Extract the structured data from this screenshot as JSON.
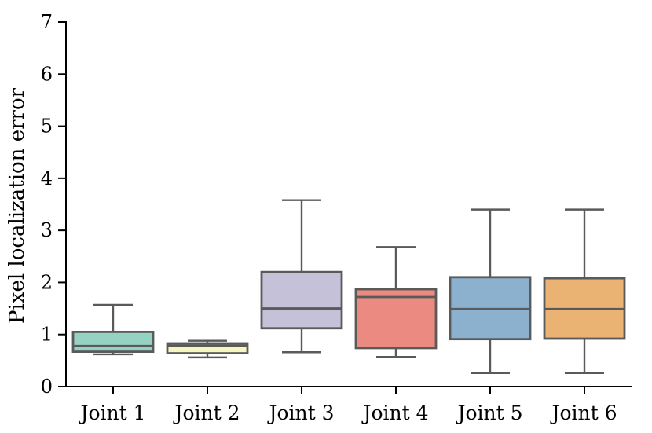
{
  "chart_data": {
    "type": "boxplot",
    "title": "",
    "xlabel": "",
    "ylabel": "Pixel localization error",
    "ylim": [
      0,
      7
    ],
    "yticks": [
      0,
      1,
      2,
      3,
      4,
      5,
      6,
      7
    ],
    "grid": false,
    "legend": "none",
    "background_color": "#ffffff",
    "axis_color": "#000000",
    "edge_color": "#5a5a5a",
    "categories": [
      "Joint 1",
      "Joint 2",
      "Joint 3",
      "Joint 4",
      "Joint 5",
      "Joint 6"
    ],
    "boxes": [
      {
        "category": "Joint 1",
        "whisker_low": 0.62,
        "q1": 0.67,
        "median": 0.78,
        "q3": 1.05,
        "whisker_high": 1.57,
        "fill_color": "#96d2c2"
      },
      {
        "category": "Joint 2",
        "whisker_low": 0.56,
        "q1": 0.64,
        "median": 0.79,
        "q3": 0.83,
        "whisker_high": 0.88,
        "fill_color": "#f6f6c0"
      },
      {
        "category": "Joint 3",
        "whisker_low": 0.66,
        "q1": 1.12,
        "median": 1.5,
        "q3": 2.2,
        "whisker_high": 3.58,
        "fill_color": "#c4c1d8"
      },
      {
        "category": "Joint 4",
        "whisker_low": 0.57,
        "q1": 0.74,
        "median": 1.72,
        "q3": 1.87,
        "whisker_high": 2.68,
        "fill_color": "#ea8a80"
      },
      {
        "category": "Joint 5",
        "whisker_low": 0.26,
        "q1": 0.91,
        "median": 1.49,
        "q3": 2.1,
        "whisker_high": 3.4,
        "fill_color": "#8bb1cf"
      },
      {
        "category": "Joint 6",
        "whisker_low": 0.26,
        "q1": 0.92,
        "median": 1.49,
        "q3": 2.08,
        "whisker_high": 3.4,
        "fill_color": "#eab373"
      }
    ]
  }
}
